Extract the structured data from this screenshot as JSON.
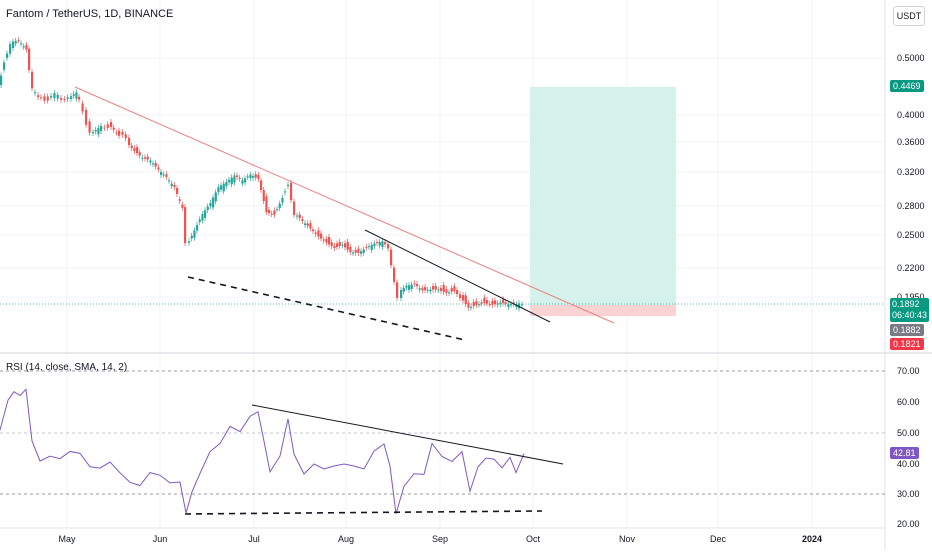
{
  "header": {
    "title": "Fantom / TetherUS, 1D, BINANCE",
    "currency_button": "USDT"
  },
  "price_axis": {
    "labels": [
      "0.5000",
      "0.4000",
      "0.3600",
      "0.3200",
      "0.2800",
      "0.2500",
      "0.2200",
      "0.1950"
    ],
    "tags": {
      "target": "0.4469",
      "current": "0.1892",
      "countdown": "06:40:43",
      "prev": "0.1882",
      "stop": "0.1821"
    }
  },
  "rsi_panel": {
    "title": "RSI (14, close, SMA, 14, 2)",
    "labels": [
      "70.00",
      "60.00",
      "50.00",
      "40.00",
      "30.00",
      "20.00"
    ],
    "value_tag": "42.81"
  },
  "time_axis": {
    "labels": [
      "May",
      "Jun",
      "Jul",
      "Aug",
      "Sep",
      "Oct",
      "Nov",
      "Dec",
      "2024"
    ]
  },
  "colors": {
    "up": "#26a69a",
    "down": "#ef5350",
    "rsi_line": "#7e57c2",
    "target_zone": "#d1f2eb",
    "stop_zone": "#fcd6d6"
  }
}
